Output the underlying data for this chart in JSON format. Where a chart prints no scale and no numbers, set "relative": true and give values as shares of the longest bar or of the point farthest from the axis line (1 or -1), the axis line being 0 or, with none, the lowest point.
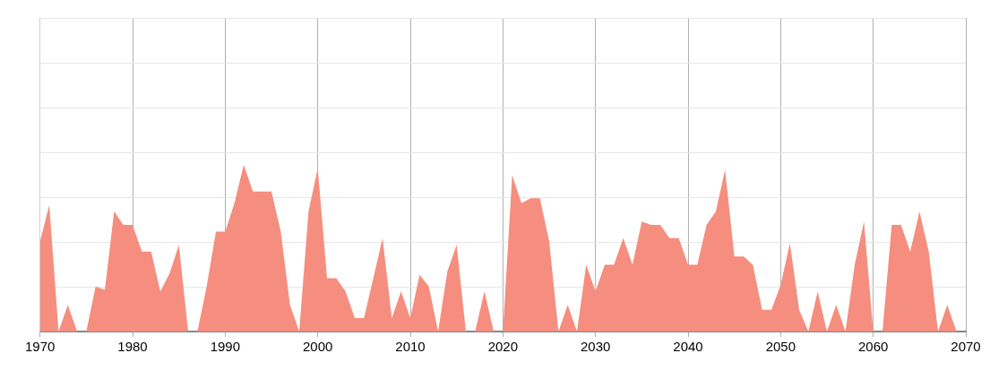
{
  "chart_data": {
    "type": "area",
    "relative": true,
    "grid": true,
    "xlim": [
      1970,
      2070
    ],
    "xticks": [
      1970,
      1980,
      1990,
      2000,
      2010,
      2020,
      2030,
      2040,
      2050,
      2060,
      2070
    ],
    "x": [
      1970,
      1971,
      1972,
      1973,
      1974,
      1975,
      1976,
      1977,
      1978,
      1979,
      1980,
      1981,
      1982,
      1983,
      1984,
      1985,
      1986,
      1987,
      1988,
      1989,
      1990,
      1991,
      1992,
      1993,
      1994,
      1995,
      1996,
      1997,
      1998,
      1999,
      2000,
      2001,
      2002,
      2003,
      2004,
      2005,
      2006,
      2007,
      2008,
      2009,
      2010,
      2011,
      2012,
      2013,
      2014,
      2015,
      2016,
      2017,
      2018,
      2019,
      2020,
      2021,
      2022,
      2023,
      2024,
      2025,
      2026,
      2027,
      2028,
      2029,
      2030,
      2031,
      2032,
      2033,
      2034,
      2035,
      2036,
      2037,
      2038,
      2039,
      2040,
      2041,
      2042,
      2043,
      2044,
      2045,
      2046,
      2047,
      2048,
      2049,
      2050,
      2051,
      2052,
      2053,
      2054,
      2055,
      2056,
      2057,
      2058,
      2059,
      2060,
      2061,
      2062,
      2063,
      2064,
      2065,
      2066,
      2067,
      2068,
      2069
    ],
    "series": [
      {
        "color": "#f58e7e",
        "values": [
          0.54,
          0.76,
          0,
          0.16,
          0,
          0,
          0.27,
          0.25,
          0.72,
          0.64,
          0.64,
          0.48,
          0.48,
          0.24,
          0.35,
          0.52,
          0,
          0,
          0.27,
          0.6,
          0.6,
          0.77,
          1,
          0.84,
          0.84,
          0.84,
          0.6,
          0.16,
          0,
          0.72,
          0.98,
          0.32,
          0.32,
          0.24,
          0.08,
          0.08,
          0.32,
          0.56,
          0.08,
          0.24,
          0.08,
          0.34,
          0.27,
          0,
          0.36,
          0.52,
          0,
          0,
          0.24,
          0,
          0,
          0.94,
          0.77,
          0.8,
          0.8,
          0.54,
          0,
          0.16,
          0,
          0.4,
          0.24,
          0.4,
          0.4,
          0.56,
          0.4,
          0.66,
          0.64,
          0.64,
          0.56,
          0.56,
          0.4,
          0.4,
          0.64,
          0.72,
          0.97,
          0.45,
          0.45,
          0.4,
          0.13,
          0.13,
          0.28,
          0.53,
          0.13,
          0,
          0.24,
          0,
          0.16,
          0,
          0.4,
          0.66,
          0,
          0,
          0.64,
          0.64,
          0.48,
          0.72,
          0.48,
          0,
          0.16,
          0
        ]
      }
    ]
  }
}
